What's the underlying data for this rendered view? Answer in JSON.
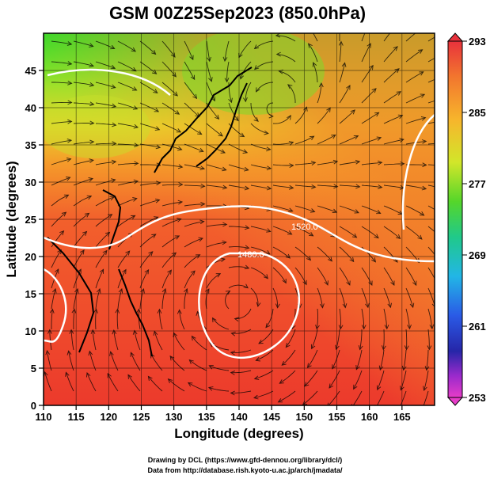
{
  "title": "GSM 00Z25Sep2023 (850.0hPa)",
  "xlabel": "Longitude (degrees)",
  "ylabel": "Latitude  (degrees)",
  "x_ticks": [
    "110",
    "115",
    "120",
    "125",
    "130",
    "135",
    "140",
    "145",
    "150",
    "155",
    "160",
    "165"
  ],
  "y_ticks": [
    "0",
    "5",
    "10",
    "15",
    "20",
    "25",
    "30",
    "35",
    "40",
    "45"
  ],
  "colorbar": {
    "labels": [
      "293",
      "285",
      "277",
      "269",
      "261",
      "253"
    ],
    "colors": [
      "#e8323c",
      "#f2762e",
      "#f7b52c",
      "#d2e62a",
      "#55d62a",
      "#20c98a",
      "#22b6e6",
      "#2a5ae6",
      "#2626a8",
      "#9b2acc",
      "#e63cc8"
    ]
  },
  "contour_labels": [
    "1520.0",
    "1480.0"
  ],
  "credits": {
    "line1": "Drawing by DCL (https://www.gfd-dennou.org/library/dcl/)",
    "line2": "Data from http://database.rish.kyoto-u.ac.jp/arch/jmadata/"
  },
  "map_data": {
    "lon_range": [
      110,
      170
    ],
    "lat_range": [
      0,
      50
    ],
    "field": "temperature (K) shaded, geopotential height contours, wind streamlines",
    "colorbar_range": [
      253,
      293
    ]
  }
}
